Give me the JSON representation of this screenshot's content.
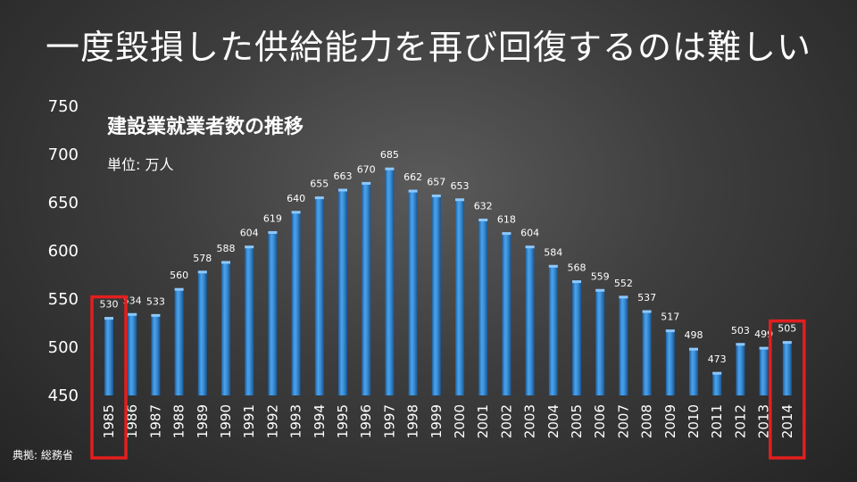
{
  "slide": {
    "title": "一度毀損した供給能力を再び回復するのは難しい",
    "source": "典拠: 総務省"
  },
  "chart_data": {
    "type": "bar",
    "title": "建設業就業者数の推移",
    "unit_label": "単位: 万人",
    "categories": [
      "1985",
      "1986",
      "1987",
      "1988",
      "1989",
      "1990",
      "1991",
      "1992",
      "1993",
      "1994",
      "1995",
      "1996",
      "1997",
      "1998",
      "1999",
      "2000",
      "2001",
      "2002",
      "2003",
      "2004",
      "2005",
      "2006",
      "2007",
      "2008",
      "2009",
      "2010",
      "2011",
      "2012",
      "2013",
      "2014"
    ],
    "values": [
      530,
      534,
      533,
      560,
      578,
      588,
      604,
      619,
      640,
      655,
      663,
      670,
      685,
      662,
      657,
      653,
      632,
      618,
      604,
      584,
      568,
      559,
      552,
      537,
      517,
      498,
      473,
      503,
      499,
      505
    ],
    "ylim": [
      450,
      750
    ],
    "yticks": [
      450,
      500,
      550,
      600,
      650,
      700,
      750
    ],
    "grid": false,
    "bar_color": "#3b8fd8",
    "highlight_color": "#e31e1e",
    "highlighted_categories": [
      "1985",
      "2014"
    ]
  }
}
